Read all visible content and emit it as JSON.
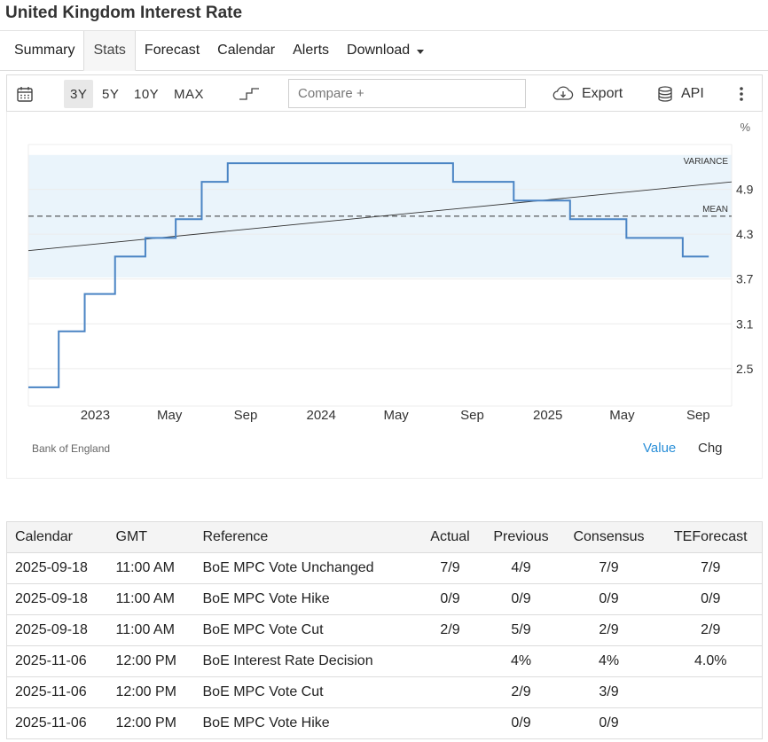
{
  "title": "United Kingdom Interest Rate",
  "tabs": [
    {
      "label": "Summary"
    },
    {
      "label": "Stats",
      "active": true
    },
    {
      "label": "Forecast"
    },
    {
      "label": "Calendar"
    },
    {
      "label": "Alerts"
    },
    {
      "label": "Download"
    }
  ],
  "toolbar": {
    "ranges": [
      "3Y",
      "5Y",
      "10Y",
      "MAX"
    ],
    "active_range": "3Y",
    "compare_placeholder": "Compare +",
    "export_label": "Export",
    "api_label": "API",
    "icons": [
      "calendar-icon",
      "step-chart-icon",
      "cloud-download-icon",
      "database-icon",
      "more-vertical-icon"
    ]
  },
  "chart_data": {
    "type": "line",
    "line_style": "step",
    "unit_label": "%",
    "x_range": [
      "2022-09-15",
      "2025-10-25"
    ],
    "y_range": [
      2.0,
      5.5
    ],
    "yticks": [
      2.5,
      3.1,
      3.7,
      4.3,
      4.9
    ],
    "ytick_labels": [
      "2.5",
      "3.1",
      "3.7",
      "4.3",
      "4.9"
    ],
    "xticks": [
      {
        "date": "2023-01-01",
        "label": "2023"
      },
      {
        "date": "2023-05-01",
        "label": "May"
      },
      {
        "date": "2023-09-01",
        "label": "Sep"
      },
      {
        "date": "2024-01-01",
        "label": "2024"
      },
      {
        "date": "2024-05-01",
        "label": "May"
      },
      {
        "date": "2024-09-01",
        "label": "Sep"
      },
      {
        "date": "2025-01-01",
        "label": "2025"
      },
      {
        "date": "2025-05-01",
        "label": "May"
      },
      {
        "date": "2025-09-01",
        "label": "Sep"
      }
    ],
    "series": [
      {
        "color": "#4a84c4",
        "points": [
          [
            "2022-09-15",
            2.25
          ],
          [
            "2022-11-03",
            3.0
          ],
          [
            "2022-12-15",
            3.5
          ],
          [
            "2023-02-02",
            4.0
          ],
          [
            "2023-03-23",
            4.25
          ],
          [
            "2023-05-11",
            4.5
          ],
          [
            "2023-06-22",
            5.0
          ],
          [
            "2023-08-03",
            5.25
          ],
          [
            "2024-08-01",
            5.0
          ],
          [
            "2024-11-07",
            4.75
          ],
          [
            "2025-02-06",
            4.5
          ],
          [
            "2025-05-08",
            4.25
          ],
          [
            "2025-08-07",
            4.0
          ],
          [
            "2025-09-18",
            4.0
          ]
        ]
      }
    ],
    "mean": 4.54,
    "variance_band": [
      3.72,
      5.36
    ],
    "trend_line": [
      [
        "2022-09-15",
        4.08
      ],
      [
        "2025-10-25",
        5.0
      ]
    ],
    "annotations": [
      "VARIANCE",
      "MEAN"
    ],
    "source": "Bank of England",
    "mode_toggle": [
      "Value",
      "Chg"
    ],
    "band_color": "#eaf4fb"
  },
  "calendar": {
    "headers": [
      "Calendar",
      "GMT",
      "Reference",
      "Actual",
      "Previous",
      "Consensus",
      "TEForecast"
    ],
    "rows": [
      [
        "2025-09-18",
        "11:00 AM",
        "BoE MPC Vote Unchanged",
        "7/9",
        "4/9",
        "7/9",
        "7/9"
      ],
      [
        "2025-09-18",
        "11:00 AM",
        "BoE MPC Vote Hike",
        "0/9",
        "0/9",
        "0/9",
        "0/9"
      ],
      [
        "2025-09-18",
        "11:00 AM",
        "BoE MPC Vote Cut",
        "2/9",
        "5/9",
        "2/9",
        "2/9"
      ],
      [
        "2025-11-06",
        "12:00 PM",
        "BoE Interest Rate Decision",
        "",
        "4%",
        "4%",
        "4.0%"
      ],
      [
        "2025-11-06",
        "12:00 PM",
        "BoE MPC Vote Cut",
        "",
        "2/9",
        "3/9",
        ""
      ],
      [
        "2025-11-06",
        "12:00 PM",
        "BoE MPC Vote Hike",
        "",
        "0/9",
        "0/9",
        ""
      ]
    ]
  }
}
